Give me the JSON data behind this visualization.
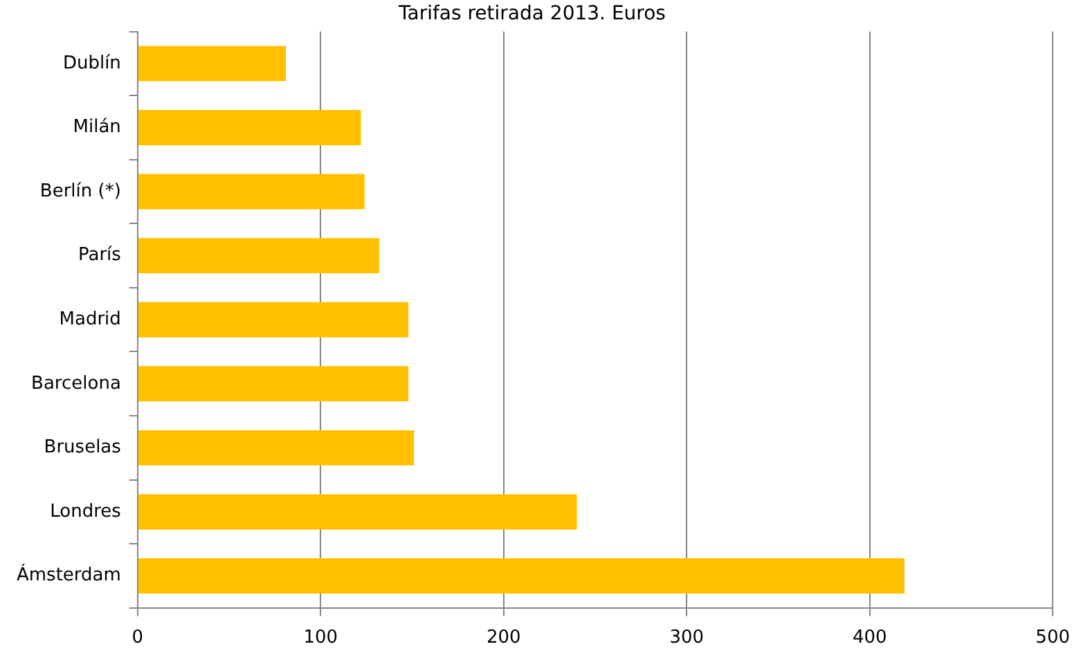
{
  "chart_data": {
    "type": "bar",
    "orientation": "horizontal",
    "title": "Tarifas retirada 2013. Euros",
    "categories": [
      "Dublín",
      "Milán",
      "Berlín (*)",
      "París",
      "Madrid",
      "Barcelona",
      "Bruselas",
      "Londres",
      "Ámsterdam"
    ],
    "values": [
      81,
      122,
      124,
      132,
      148,
      148,
      151,
      240,
      419
    ],
    "color": "#ffc000",
    "xlim": [
      0,
      500
    ],
    "xticks": [
      0,
      100,
      200,
      300,
      400,
      500
    ],
    "grid": "x",
    "legend": false
  }
}
